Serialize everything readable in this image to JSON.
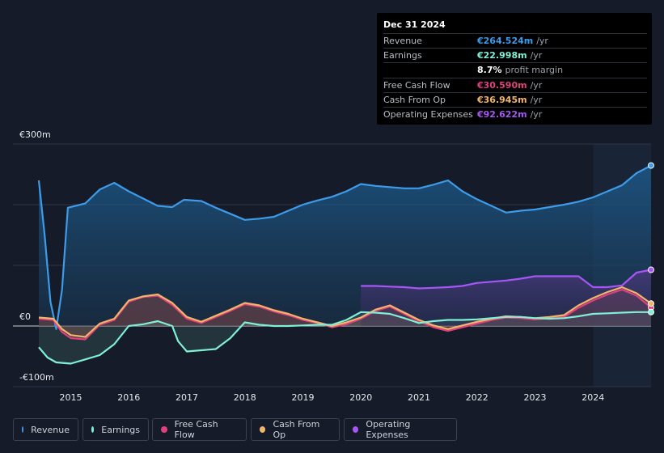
{
  "tooltip": {
    "date": "Dec 31 2024",
    "rows": [
      {
        "label": "Revenue",
        "value": "€264.524m",
        "unit": "/yr",
        "color": "#3d9be9"
      },
      {
        "label": "Earnings",
        "value": "€22.998m",
        "unit": "/yr",
        "color": "#7ef0d5"
      },
      {
        "label": "",
        "value": "8.7%",
        "unit": "profit margin",
        "color": "#ffffff"
      },
      {
        "label": "Free Cash Flow",
        "value": "€30.590m",
        "unit": "/yr",
        "color": "#e0407d"
      },
      {
        "label": "Cash From Op",
        "value": "€36.945m",
        "unit": "/yr",
        "color": "#f2b46b"
      },
      {
        "label": "Operating Expenses",
        "value": "€92.622m",
        "unit": "/yr",
        "color": "#a855f7"
      }
    ]
  },
  "legend": [
    {
      "label": "Revenue",
      "color": "#3d9be9"
    },
    {
      "label": "Earnings",
      "color": "#7ef0d5"
    },
    {
      "label": "Free Cash Flow",
      "color": "#e0407d"
    },
    {
      "label": "Cash From Op",
      "color": "#f2b46b"
    },
    {
      "label": "Operating Expenses",
      "color": "#a855f7"
    }
  ],
  "chart_data": {
    "type": "area",
    "title": "",
    "xlabel": "",
    "ylabel": "",
    "y_tick_labels": [
      "€300m",
      "€0",
      "-€100m"
    ],
    "ylim": [
      -100,
      300
    ],
    "xlim": [
      2014.45,
      2025.0
    ],
    "x_ticks": [
      2015,
      2016,
      2017,
      2018,
      2019,
      2020,
      2021,
      2022,
      2023,
      2024
    ],
    "x_tick_labels": [
      "2015",
      "2016",
      "2017",
      "2018",
      "2019",
      "2020",
      "2021",
      "2022",
      "2023",
      "2024"
    ],
    "highlight_from": 2024.0,
    "series": [
      {
        "name": "Revenue",
        "color": "#3d9be9",
        "points": [
          [
            2014.45,
            240
          ],
          [
            2014.55,
            150
          ],
          [
            2014.65,
            40
          ],
          [
            2014.75,
            -5
          ],
          [
            2014.85,
            60
          ],
          [
            2014.95,
            195
          ],
          [
            2015.25,
            202
          ],
          [
            2015.5,
            225
          ],
          [
            2015.75,
            236
          ],
          [
            2016.0,
            222
          ],
          [
            2016.25,
            210
          ],
          [
            2016.5,
            198
          ],
          [
            2016.75,
            196
          ],
          [
            2016.95,
            208
          ],
          [
            2017.25,
            206
          ],
          [
            2017.5,
            195
          ],
          [
            2017.75,
            185
          ],
          [
            2018.0,
            175
          ],
          [
            2018.25,
            177
          ],
          [
            2018.5,
            180
          ],
          [
            2018.75,
            190
          ],
          [
            2019.0,
            200
          ],
          [
            2019.25,
            207
          ],
          [
            2019.5,
            213
          ],
          [
            2019.75,
            222
          ],
          [
            2020.0,
            234
          ],
          [
            2020.25,
            231
          ],
          [
            2020.5,
            229
          ],
          [
            2020.75,
            227
          ],
          [
            2021.0,
            227
          ],
          [
            2021.25,
            233
          ],
          [
            2021.5,
            240
          ],
          [
            2021.75,
            222
          ],
          [
            2022.0,
            209
          ],
          [
            2022.25,
            198
          ],
          [
            2022.5,
            187
          ],
          [
            2022.75,
            190
          ],
          [
            2023.0,
            192
          ],
          [
            2023.25,
            196
          ],
          [
            2023.5,
            200
          ],
          [
            2023.75,
            205
          ],
          [
            2024.0,
            212
          ],
          [
            2024.25,
            222
          ],
          [
            2024.5,
            232
          ],
          [
            2024.75,
            252
          ],
          [
            2025.0,
            264.524
          ]
        ]
      },
      {
        "name": "Earnings",
        "color": "#7ef0d5",
        "points": [
          [
            2014.45,
            -35
          ],
          [
            2014.6,
            -52
          ],
          [
            2014.75,
            -60
          ],
          [
            2015.0,
            -62
          ],
          [
            2015.25,
            -55
          ],
          [
            2015.5,
            -48
          ],
          [
            2015.75,
            -30
          ],
          [
            2016.0,
            0
          ],
          [
            2016.25,
            3
          ],
          [
            2016.5,
            8
          ],
          [
            2016.75,
            0
          ],
          [
            2016.85,
            -25
          ],
          [
            2017.0,
            -42
          ],
          [
            2017.25,
            -40
          ],
          [
            2017.5,
            -38
          ],
          [
            2017.75,
            -20
          ],
          [
            2018.0,
            6
          ],
          [
            2018.25,
            2
          ],
          [
            2018.5,
            0
          ],
          [
            2018.75,
            0
          ],
          [
            2019.0,
            1
          ],
          [
            2019.25,
            2
          ],
          [
            2019.5,
            2
          ],
          [
            2019.75,
            10
          ],
          [
            2020.0,
            23
          ],
          [
            2020.25,
            22
          ],
          [
            2020.5,
            20
          ],
          [
            2020.75,
            13
          ],
          [
            2021.0,
            5
          ],
          [
            2021.25,
            8
          ],
          [
            2021.5,
            10
          ],
          [
            2021.75,
            10
          ],
          [
            2022.0,
            11
          ],
          [
            2022.25,
            13
          ],
          [
            2022.5,
            15
          ],
          [
            2022.75,
            15
          ],
          [
            2023.0,
            13
          ],
          [
            2023.25,
            12
          ],
          [
            2023.5,
            13
          ],
          [
            2023.75,
            16
          ],
          [
            2024.0,
            20
          ],
          [
            2024.25,
            21
          ],
          [
            2024.5,
            22
          ],
          [
            2024.75,
            23
          ],
          [
            2025.0,
            22.998
          ]
        ]
      },
      {
        "name": "Free Cash Flow",
        "color": "#e0407d",
        "points": [
          [
            2014.45,
            12
          ],
          [
            2014.7,
            10
          ],
          [
            2014.85,
            -10
          ],
          [
            2015.0,
            -20
          ],
          [
            2015.25,
            -22
          ],
          [
            2015.5,
            2
          ],
          [
            2015.75,
            10
          ],
          [
            2016.0,
            40
          ],
          [
            2016.25,
            48
          ],
          [
            2016.5,
            50
          ],
          [
            2016.75,
            35
          ],
          [
            2017.0,
            12
          ],
          [
            2017.25,
            5
          ],
          [
            2017.5,
            15
          ],
          [
            2017.75,
            25
          ],
          [
            2018.0,
            36
          ],
          [
            2018.25,
            32
          ],
          [
            2018.5,
            24
          ],
          [
            2018.75,
            18
          ],
          [
            2019.0,
            10
          ],
          [
            2019.25,
            5
          ],
          [
            2019.5,
            -2
          ],
          [
            2019.75,
            3
          ],
          [
            2020.0,
            12
          ],
          [
            2020.25,
            25
          ],
          [
            2020.5,
            32
          ],
          [
            2020.75,
            20
          ],
          [
            2021.0,
            8
          ],
          [
            2021.25,
            -2
          ],
          [
            2021.5,
            -8
          ],
          [
            2021.75,
            -2
          ],
          [
            2022.0,
            4
          ],
          [
            2022.25,
            10
          ],
          [
            2022.5,
            14
          ],
          [
            2022.75,
            13
          ],
          [
            2023.0,
            11
          ],
          [
            2023.25,
            13
          ],
          [
            2023.5,
            15
          ],
          [
            2023.75,
            30
          ],
          [
            2024.0,
            42
          ],
          [
            2024.25,
            52
          ],
          [
            2024.5,
            60
          ],
          [
            2024.75,
            50
          ],
          [
            2025.0,
            30.59
          ]
        ]
      },
      {
        "name": "Cash From Op",
        "color": "#f2b46b",
        "points": [
          [
            2014.45,
            14
          ],
          [
            2014.7,
            12
          ],
          [
            2014.85,
            -5
          ],
          [
            2015.0,
            -15
          ],
          [
            2015.25,
            -18
          ],
          [
            2015.5,
            4
          ],
          [
            2015.75,
            12
          ],
          [
            2016.0,
            42
          ],
          [
            2016.25,
            49
          ],
          [
            2016.5,
            52
          ],
          [
            2016.75,
            38
          ],
          [
            2017.0,
            15
          ],
          [
            2017.25,
            7
          ],
          [
            2017.5,
            17
          ],
          [
            2017.75,
            27
          ],
          [
            2018.0,
            38
          ],
          [
            2018.25,
            34
          ],
          [
            2018.5,
            26
          ],
          [
            2018.75,
            20
          ],
          [
            2019.0,
            12
          ],
          [
            2019.25,
            6
          ],
          [
            2019.5,
            0
          ],
          [
            2019.75,
            6
          ],
          [
            2020.0,
            14
          ],
          [
            2020.25,
            27
          ],
          [
            2020.5,
            34
          ],
          [
            2020.75,
            22
          ],
          [
            2021.0,
            10
          ],
          [
            2021.25,
            1
          ],
          [
            2021.5,
            -5
          ],
          [
            2021.75,
            1
          ],
          [
            2022.0,
            7
          ],
          [
            2022.25,
            12
          ],
          [
            2022.5,
            16
          ],
          [
            2022.75,
            15
          ],
          [
            2023.0,
            13
          ],
          [
            2023.25,
            15
          ],
          [
            2023.5,
            18
          ],
          [
            2023.75,
            34
          ],
          [
            2024.0,
            46
          ],
          [
            2024.25,
            56
          ],
          [
            2024.5,
            64
          ],
          [
            2024.75,
            54
          ],
          [
            2025.0,
            36.945
          ]
        ]
      },
      {
        "name": "Operating Expenses",
        "color": "#a855f7",
        "points": [
          [
            2020.0,
            66
          ],
          [
            2020.25,
            66
          ],
          [
            2020.5,
            65
          ],
          [
            2020.75,
            64
          ],
          [
            2021.0,
            62
          ],
          [
            2021.25,
            63
          ],
          [
            2021.5,
            64
          ],
          [
            2021.75,
            66
          ],
          [
            2022.0,
            71
          ],
          [
            2022.25,
            73
          ],
          [
            2022.5,
            75
          ],
          [
            2022.75,
            78
          ],
          [
            2023.0,
            82
          ],
          [
            2023.25,
            82
          ],
          [
            2023.5,
            82
          ],
          [
            2023.75,
            82
          ],
          [
            2024.0,
            64
          ],
          [
            2024.25,
            64
          ],
          [
            2024.5,
            67
          ],
          [
            2024.75,
            88
          ],
          [
            2025.0,
            92.622
          ]
        ]
      }
    ]
  }
}
